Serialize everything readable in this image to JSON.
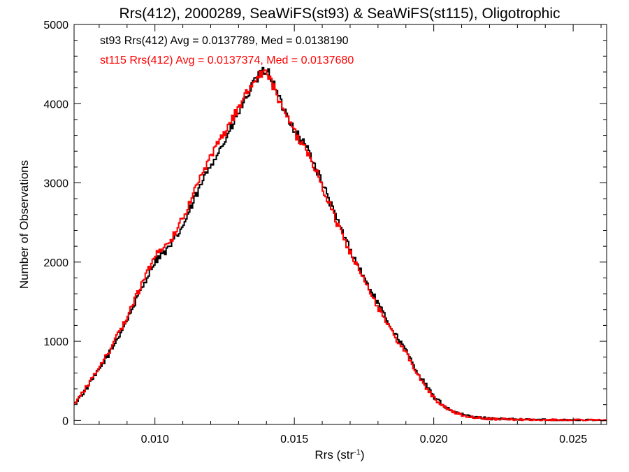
{
  "chart_data": {
    "type": "line",
    "title": "Rrs(412), 2000289, SeaWiFS(st93) & SeaWiFS(st115), Oligotrophic",
    "xlabel_main": "Rrs (str",
    "xlabel_sup": "-1",
    "xlabel_end": ")",
    "ylabel": "Number of Observations",
    "xlim": [
      0.0071,
      0.0262
    ],
    "ylim": [
      -50,
      5000
    ],
    "x_ticks": [
      0.01,
      0.015,
      0.02,
      0.025
    ],
    "x_tick_labels": [
      "0.010",
      "0.015",
      "0.020",
      "0.025"
    ],
    "y_ticks": [
      0,
      1000,
      2000,
      3000,
      4000,
      5000
    ],
    "y_tick_labels": [
      "0",
      "1000",
      "2000",
      "3000",
      "4000",
      "5000"
    ],
    "grid": false,
    "annotations": [
      {
        "text": "st93 Rrs(412) Avg = 0.0137789, Med = 0.0138190",
        "color": "#000000"
      },
      {
        "text": "st115 Rrs(412) Avg = 0.0137374, Med = 0.0137680",
        "color": "#ff0000"
      }
    ],
    "series": [
      {
        "color": "#000000",
        "x": [
          0.0071,
          0.0075,
          0.008,
          0.0085,
          0.009,
          0.0095,
          0.01,
          0.0102,
          0.0105,
          0.011,
          0.0115,
          0.012,
          0.0125,
          0.013,
          0.0135,
          0.0138,
          0.014,
          0.0142,
          0.0145,
          0.015,
          0.0155,
          0.016,
          0.0165,
          0.017,
          0.0175,
          0.018,
          0.0185,
          0.019,
          0.0195,
          0.02,
          0.0205,
          0.021,
          0.0215,
          0.022,
          0.023,
          0.024,
          0.025,
          0.0262
        ],
        "y": [
          200,
          380,
          640,
          930,
          1270,
          1650,
          2020,
          2080,
          2170,
          2450,
          2850,
          3240,
          3520,
          3880,
          4230,
          4380,
          4440,
          4300,
          4020,
          3680,
          3420,
          3000,
          2560,
          2160,
          1800,
          1470,
          1160,
          880,
          560,
          300,
          150,
          75,
          40,
          25,
          12,
          8,
          5,
          3
        ]
      },
      {
        "color": "#ff0000",
        "x": [
          0.0071,
          0.0075,
          0.008,
          0.0085,
          0.009,
          0.0095,
          0.01,
          0.0102,
          0.0105,
          0.011,
          0.0115,
          0.012,
          0.0125,
          0.013,
          0.0135,
          0.0138,
          0.014,
          0.0142,
          0.0145,
          0.015,
          0.0155,
          0.016,
          0.0165,
          0.017,
          0.0175,
          0.018,
          0.0185,
          0.019,
          0.0195,
          0.02,
          0.0205,
          0.021,
          0.0215,
          0.022,
          0.023,
          0.024,
          0.025,
          0.0262
        ],
        "y": [
          190,
          400,
          660,
          960,
          1310,
          1700,
          2080,
          2150,
          2230,
          2560,
          2960,
          3330,
          3630,
          3960,
          4280,
          4390,
          4420,
          4260,
          3980,
          3640,
          3380,
          2960,
          2520,
          2120,
          1760,
          1430,
          1120,
          850,
          530,
          285,
          140,
          70,
          38,
          22,
          11,
          7,
          4,
          3
        ]
      }
    ]
  }
}
